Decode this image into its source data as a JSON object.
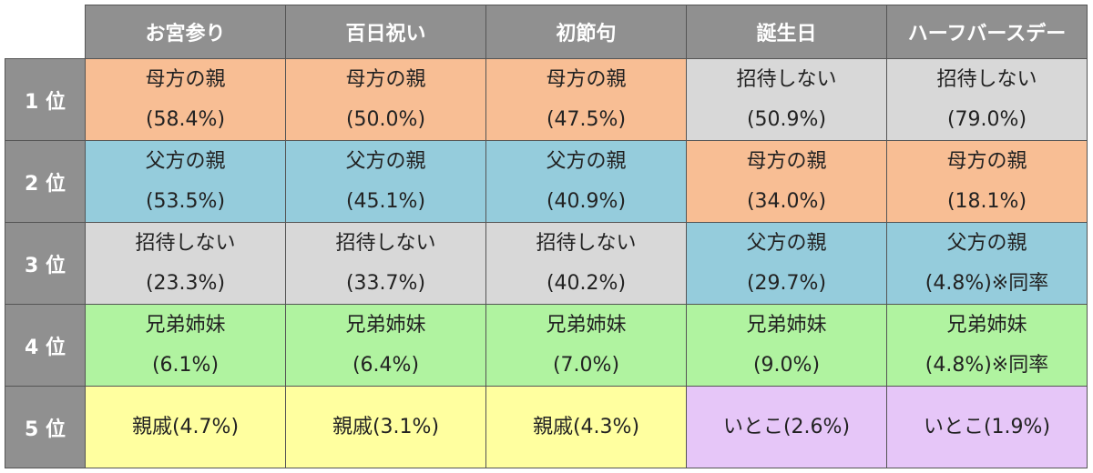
{
  "colors": {
    "header_bg": "#909090",
    "mother": "#f8be94",
    "father": "#95ccdc",
    "none": "#d8d8d8",
    "siblings": "#b0f3a0",
    "relatives": "#ffff9f",
    "cousin": "#e6c6f8"
  },
  "columns": [
    "お宮参り",
    "百日祝い",
    "初節句",
    "誕生日",
    "ハーフバースデー"
  ],
  "rows": [
    {
      "label": "1 位",
      "cells": [
        {
          "line1": "母方の親",
          "line2": "(58.4%)",
          "color": "#f8be94"
        },
        {
          "line1": "母方の親",
          "line2": "(50.0%)",
          "color": "#f8be94"
        },
        {
          "line1": "母方の親",
          "line2": "(47.5%)",
          "color": "#f8be94"
        },
        {
          "line1": "招待しない",
          "line2": "(50.9%)",
          "color": "#d8d8d8"
        },
        {
          "line1": "招待しない",
          "line2": "(79.0%)",
          "color": "#d8d8d8"
        }
      ]
    },
    {
      "label": "2 位",
      "cells": [
        {
          "line1": "父方の親",
          "line2": "(53.5%)",
          "color": "#95ccdc"
        },
        {
          "line1": "父方の親",
          "line2": "(45.1%)",
          "color": "#95ccdc"
        },
        {
          "line1": "父方の親",
          "line2": "(40.9%)",
          "color": "#95ccdc"
        },
        {
          "line1": "母方の親",
          "line2": "(34.0%)",
          "color": "#f8be94"
        },
        {
          "line1": "母方の親",
          "line2": "(18.1%)",
          "color": "#f8be94"
        }
      ]
    },
    {
      "label": "3 位",
      "cells": [
        {
          "line1": "招待しない",
          "line2": "(23.3%)",
          "color": "#d8d8d8"
        },
        {
          "line1": "招待しない",
          "line2": "(33.7%)",
          "color": "#d8d8d8"
        },
        {
          "line1": "招待しない",
          "line2": "(40.2%)",
          "color": "#d8d8d8"
        },
        {
          "line1": "父方の親",
          "line2": "(29.7%)",
          "color": "#95ccdc"
        },
        {
          "line1": "父方の親",
          "line2": "(4.8%)※同率",
          "color": "#95ccdc"
        }
      ]
    },
    {
      "label": "4 位",
      "cells": [
        {
          "line1": "兄弟姉妹",
          "line2": "(6.1%)",
          "color": "#b0f3a0"
        },
        {
          "line1": "兄弟姉妹",
          "line2": "(6.4%)",
          "color": "#b0f3a0"
        },
        {
          "line1": "兄弟姉妹",
          "line2": "(7.0%)",
          "color": "#b0f3a0"
        },
        {
          "line1": "兄弟姉妹",
          "line2": "(9.0%)",
          "color": "#b0f3a0"
        },
        {
          "line1": "兄弟姉妹",
          "line2": "(4.8%)※同率",
          "color": "#b0f3a0"
        }
      ]
    },
    {
      "label": "5 位",
      "cells": [
        {
          "line1": "親戚(4.7%)",
          "line2": "",
          "color": "#ffff9f"
        },
        {
          "line1": "親戚(3.1%)",
          "line2": "",
          "color": "#ffff9f"
        },
        {
          "line1": "親戚(4.3%)",
          "line2": "",
          "color": "#ffff9f"
        },
        {
          "line1": "いとこ(2.6%)",
          "line2": "",
          "color": "#e6c6f8"
        },
        {
          "line1": "いとこ(1.9%)",
          "line2": "",
          "color": "#e6c6f8"
        }
      ]
    }
  ]
}
